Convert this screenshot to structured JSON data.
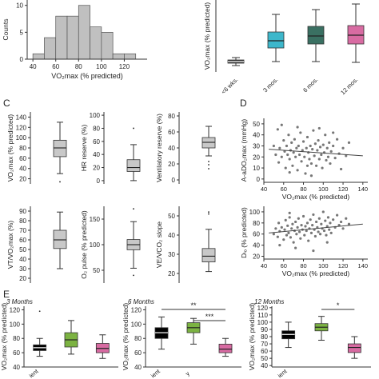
{
  "panel_labels": {
    "c": "C",
    "d": "D",
    "e": "E"
  },
  "chart_data": [
    {
      "id": "histogram",
      "type": "bar",
      "title": "",
      "xlabel": "VO₂max (% predicted)",
      "ylabel": "Counts",
      "bin_edges": [
        40,
        50,
        60,
        70,
        80,
        90,
        100,
        110,
        120,
        130
      ],
      "values": [
        1,
        4,
        8,
        8,
        10,
        6,
        5,
        1,
        1
      ],
      "xticks": [
        "40",
        "60",
        "80",
        "100",
        "120"
      ],
      "yticks": [
        "0",
        "5",
        "10"
      ],
      "xlim": [
        35,
        140
      ],
      "ylim": [
        0,
        11
      ],
      "color": "#c0c0c0",
      "grid": false
    },
    {
      "id": "time-course",
      "type": "box",
      "ylabel": "VO₂max (% predicted)",
      "categories": [
        "<6 wks.",
        "3 mos.",
        "6 mos.",
        "12 mos."
      ],
      "colors": [
        "#333333",
        "#3db7cb",
        "#3a7062",
        "#d86ba2"
      ],
      "boxes": [
        {
          "min": 43,
          "q1": 46,
          "median": 48,
          "q3": 50,
          "max": 53
        },
        {
          "min": 48,
          "q1": 65,
          "median": 74,
          "q3": 85,
          "max": 107
        },
        {
          "min": 48,
          "q1": 70,
          "median": 80,
          "q3": 92,
          "max": 113
        },
        {
          "min": 47,
          "q1": 70,
          "median": 81,
          "q3": 93,
          "max": 120
        }
      ],
      "ylim": [
        35,
        125
      ],
      "yticks": []
    },
    {
      "id": "vo2max",
      "type": "box",
      "ylabel": "VO₂max (% predicted)",
      "yticks": [
        "20",
        "40",
        "60",
        "80",
        "100",
        "120",
        "140"
      ],
      "ylim": [
        10,
        150
      ],
      "box": {
        "min": 30,
        "q1": 63,
        "median": 80,
        "q3": 95,
        "max": 130
      },
      "outliers": [
        14
      ],
      "color": "#c8c8c8"
    },
    {
      "id": "hr-reserve",
      "type": "box",
      "ylabel": "HR reserve (%)",
      "yticks": [
        "0",
        "20",
        "40",
        "60",
        "80",
        "100"
      ],
      "ylim": [
        -5,
        105
      ],
      "box": {
        "min": 0,
        "q1": 14,
        "median": 20,
        "q3": 32,
        "max": 55
      },
      "outliers": [
        80
      ],
      "color": "#c8c8c8"
    },
    {
      "id": "ventilatory-reserve",
      "type": "box",
      "ylabel": "Ventilatory reserve (%)",
      "yticks": [
        "0",
        "20",
        "40",
        "60",
        "80"
      ],
      "ylim": [
        -5,
        85
      ],
      "box": {
        "min": 30,
        "q1": 40,
        "median": 47,
        "q3": 53,
        "max": 67
      },
      "outliers": [
        23,
        19,
        14
      ],
      "color": "#c8c8c8"
    },
    {
      "id": "vt-vo2max",
      "type": "box",
      "ylabel": "VT/VO₂max (%)",
      "yticks": [
        "20",
        "30",
        "40",
        "50",
        "60",
        "70",
        "80",
        "90"
      ],
      "ylim": [
        15,
        95
      ],
      "box": {
        "min": 30,
        "q1": 51,
        "median": 60,
        "q3": 70,
        "max": 89
      },
      "outliers": [],
      "color": "#c8c8c8"
    },
    {
      "id": "o2-pulse",
      "type": "box",
      "ylabel": "O₂ pulse (% predicted)",
      "yticks": [
        "50",
        "100",
        "150"
      ],
      "ylim": [
        25,
        175
      ],
      "box": {
        "min": 54,
        "q1": 90,
        "median": 100,
        "q3": 110,
        "max": 145
      },
      "outliers": [
        170,
        40
      ],
      "color": "#c8c8c8"
    },
    {
      "id": "ve-vco2-slope",
      "type": "box",
      "ylabel": "VE/VCO₂ slope",
      "yticks": [
        "20",
        "30",
        "40",
        "50"
      ],
      "ylim": [
        15,
        55
      ],
      "box": {
        "min": 21,
        "q1": 26,
        "median": 29,
        "q3": 33,
        "max": 43
      },
      "outliers": [
        52,
        51
      ],
      "color": "#c8c8c8"
    },
    {
      "id": "a-ado2",
      "type": "scatter",
      "xlabel": "VO₂max (% predicted)",
      "ylabel": "A-aDO₂max (mmHg)",
      "xticks": [
        "40",
        "60",
        "80",
        "100",
        "120",
        "140"
      ],
      "yticks": [
        "0",
        "10",
        "20",
        "30",
        "40",
        "50"
      ],
      "xlim": [
        40,
        145
      ],
      "ylim": [
        -3,
        55
      ],
      "trend": {
        "x": [
          45,
          140
        ],
        "y": [
          27,
          21
        ]
      },
      "points": [
        [
          50,
          30
        ],
        [
          52,
          22
        ],
        [
          54,
          45
        ],
        [
          55,
          15
        ],
        [
          56,
          28
        ],
        [
          58,
          20
        ],
        [
          60,
          35
        ],
        [
          61,
          25
        ],
        [
          62,
          10
        ],
        [
          63,
          30
        ],
        [
          64,
          22
        ],
        [
          65,
          40
        ],
        [
          66,
          18
        ],
        [
          67,
          26
        ],
        [
          68,
          33
        ],
        [
          69,
          12
        ],
        [
          70,
          24
        ],
        [
          71,
          36
        ],
        [
          72,
          20
        ],
        [
          73,
          28
        ],
        [
          74,
          8
        ],
        [
          75,
          30
        ],
        [
          76,
          22
        ],
        [
          77,
          42
        ],
        [
          78,
          16
        ],
        [
          79,
          26
        ],
        [
          80,
          34
        ],
        [
          81,
          20
        ],
        [
          82,
          5
        ],
        [
          83,
          28
        ],
        [
          84,
          38
        ],
        [
          85,
          24
        ],
        [
          86,
          18
        ],
        [
          87,
          30
        ],
        [
          88,
          14
        ],
        [
          89,
          27
        ],
        [
          90,
          44
        ],
        [
          91,
          21
        ],
        [
          92,
          32
        ],
        [
          93,
          12
        ],
        [
          94,
          26
        ],
        [
          95,
          35
        ],
        [
          96,
          18
        ],
        [
          97,
          29
        ],
        [
          98,
          22
        ],
        [
          99,
          10
        ],
        [
          100,
          31
        ],
        [
          101,
          24
        ],
        [
          102,
          40
        ],
        [
          103,
          17
        ],
        [
          104,
          28
        ],
        [
          105,
          20
        ],
        [
          106,
          33
        ],
        [
          107,
          14
        ],
        [
          108,
          25
        ],
        [
          110,
          30
        ],
        [
          112,
          19
        ],
        [
          114,
          36
        ],
        [
          116,
          23
        ],
        [
          118,
          9
        ],
        [
          120,
          28
        ],
        [
          123,
          21
        ],
        [
          126,
          33
        ],
        [
          58,
          49
        ],
        [
          74,
          47
        ],
        [
          88,
          3
        ],
        [
          96,
          46
        ],
        [
          110,
          42
        ],
        [
          66,
          6
        ],
        [
          84,
          12
        ]
      ]
    },
    {
      "id": "dlco",
      "type": "scatter",
      "xlabel": "VO₂max (% predicted)",
      "ylabel": "Dₗₒ (% predicted)",
      "ylabel_main": "D",
      "ylabel_sub": "LCO",
      "ylabel_rest": " (% predicted)",
      "xticks": [
        "40",
        "60",
        "80",
        "100",
        "120",
        "140"
      ],
      "yticks": [
        "20",
        "40",
        "60",
        "80",
        "100"
      ],
      "xlim": [
        40,
        145
      ],
      "ylim": [
        15,
        110
      ],
      "trend": {
        "x": [
          45,
          140
        ],
        "y": [
          62,
          78
        ]
      },
      "points": [
        [
          50,
          60
        ],
        [
          52,
          70
        ],
        [
          54,
          55
        ],
        [
          55,
          80
        ],
        [
          56,
          65
        ],
        [
          58,
          72
        ],
        [
          60,
          50
        ],
        [
          61,
          68
        ],
        [
          62,
          85
        ],
        [
          63,
          58
        ],
        [
          64,
          75
        ],
        [
          65,
          62
        ],
        [
          66,
          90
        ],
        [
          67,
          54
        ],
        [
          68,
          70
        ],
        [
          69,
          78
        ],
        [
          70,
          45
        ],
        [
          71,
          66
        ],
        [
          72,
          82
        ],
        [
          73,
          60
        ],
        [
          74,
          72
        ],
        [
          75,
          88
        ],
        [
          76,
          64
        ],
        [
          77,
          52
        ],
        [
          78,
          76
        ],
        [
          79,
          68
        ],
        [
          80,
          92
        ],
        [
          81,
          58
        ],
        [
          82,
          74
        ],
        [
          83,
          66
        ],
        [
          84,
          80
        ],
        [
          85,
          48
        ],
        [
          86,
          70
        ],
        [
          87,
          86
        ],
        [
          88,
          62
        ],
        [
          89,
          76
        ],
        [
          90,
          95
        ],
        [
          91,
          68
        ],
        [
          92,
          56
        ],
        [
          93,
          82
        ],
        [
          94,
          72
        ],
        [
          95,
          64
        ],
        [
          96,
          88
        ],
        [
          97,
          60
        ],
        [
          98,
          78
        ],
        [
          99,
          70
        ],
        [
          100,
          100
        ],
        [
          101,
          66
        ],
        [
          102,
          84
        ],
        [
          103,
          58
        ],
        [
          104,
          74
        ],
        [
          105,
          90
        ],
        [
          106,
          68
        ],
        [
          107,
          80
        ],
        [
          108,
          62
        ],
        [
          110,
          86
        ],
        [
          112,
          72
        ],
        [
          114,
          94
        ],
        [
          116,
          76
        ],
        [
          118,
          82
        ],
        [
          120,
          70
        ],
        [
          123,
          88
        ],
        [
          126,
          78
        ],
        [
          56,
          40
        ],
        [
          72,
          35
        ],
        [
          90,
          30
        ],
        [
          104,
          45
        ],
        [
          66,
          98
        ]
      ]
    },
    {
      "id": "e-3-months",
      "type": "box",
      "title": "3 Months",
      "ylabel": "VO₂max (% predicted)",
      "yticks": [
        "40",
        "60",
        "80",
        "100",
        "120"
      ],
      "ylim": [
        40,
        125
      ],
      "categories": [
        "ient",
        "",
        ""
      ],
      "colors": [
        "#000000",
        "#7cb342",
        "#d86ba2"
      ],
      "boxes": [
        {
          "min": 55,
          "q1": 63,
          "median": 67,
          "q3": 71,
          "max": 80
        },
        {
          "min": 58,
          "q1": 68,
          "median": 78,
          "q3": 88,
          "max": 105
        },
        {
          "min": 52,
          "q1": 60,
          "median": 66,
          "q3": 73,
          "max": 85
        }
      ],
      "outliers": [
        {
          "group": 0,
          "value": 118
        }
      ],
      "significance": []
    },
    {
      "id": "e-6-months",
      "type": "box",
      "title": "6 Months",
      "ylabel": "VO₂max (% predicted)",
      "yticks": [
        "40",
        "60",
        "80",
        "100",
        "120"
      ],
      "ylim": [
        40,
        125
      ],
      "categories": [
        "ient",
        "y",
        ""
      ],
      "colors": [
        "#000000",
        "#7cb342",
        "#d86ba2"
      ],
      "boxes": [
        {
          "min": 65,
          "q1": 80,
          "median": 88,
          "q3": 95,
          "max": 110
        },
        {
          "min": 72,
          "q1": 88,
          "median": 95,
          "q3": 102,
          "max": 108
        },
        {
          "min": 55,
          "q1": 60,
          "median": 65,
          "q3": 72,
          "max": 80
        }
      ],
      "outliers": [],
      "significance": [
        {
          "from": 0,
          "to": 2,
          "label": "**",
          "level": 0
        },
        {
          "from": 1,
          "to": 2,
          "label": "***",
          "level": 1
        }
      ]
    },
    {
      "id": "e-12-months",
      "type": "box",
      "title": "12 Months",
      "ylabel": "VO₂max (% predicted)",
      "yticks": [
        "40",
        "50",
        "60",
        "70",
        "80",
        "90",
        "100",
        "110",
        "120"
      ],
      "ylim": [
        38,
        122
      ],
      "categories": [
        "ient",
        "",
        ""
      ],
      "colors": [
        "#000000",
        "#7cb342",
        "#d86ba2"
      ],
      "boxes": [
        {
          "min": 65,
          "q1": 77,
          "median": 83,
          "q3": 88,
          "max": 100
        },
        {
          "min": 75,
          "q1": 88,
          "median": 93,
          "q3": 98,
          "max": 108
        },
        {
          "min": 50,
          "q1": 58,
          "median": 65,
          "q3": 70,
          "max": 80
        }
      ],
      "outliers": [],
      "significance": [
        {
          "from": 1,
          "to": 2,
          "label": "*",
          "level": 0
        }
      ]
    }
  ]
}
